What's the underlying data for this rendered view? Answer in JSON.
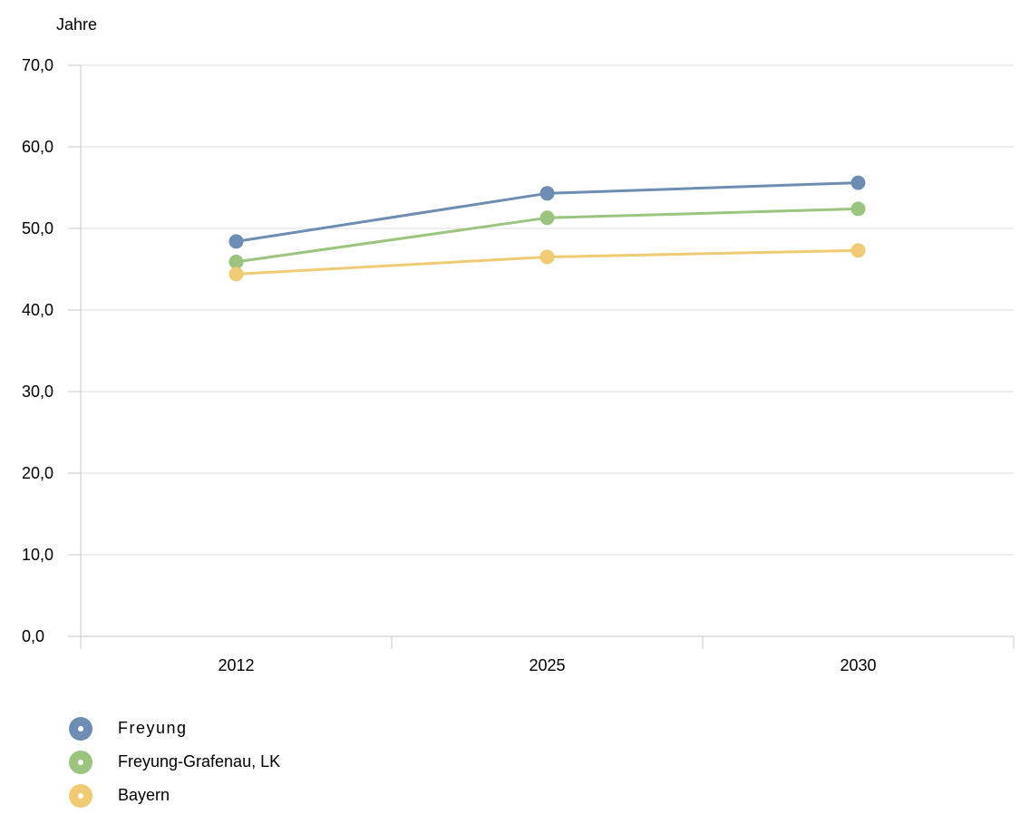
{
  "chart_data": {
    "type": "line",
    "unit_label": "Jahre",
    "categories": [
      "2012",
      "2025",
      "2030"
    ],
    "ylim": [
      0,
      70
    ],
    "yticks": [
      0,
      10,
      20,
      30,
      40,
      50,
      60,
      70
    ],
    "ytick_labels": [
      "0,0",
      "10,0",
      "20,0",
      "30,0",
      "40,0",
      "50,0",
      "60,0",
      "70,0"
    ],
    "grid": true,
    "legend_position": "bottom-left",
    "series": [
      {
        "name": "Freyung",
        "color": "#6e8db2",
        "values": [
          48.4,
          54.3,
          55.6
        ]
      },
      {
        "name": "Freyung-Grafenau, LK",
        "color": "#9bc57f",
        "values": [
          45.9,
          51.3,
          52.4
        ]
      },
      {
        "name": "Bayern",
        "color": "#f0cb73",
        "values": [
          44.4,
          46.5,
          47.3
        ]
      }
    ]
  }
}
